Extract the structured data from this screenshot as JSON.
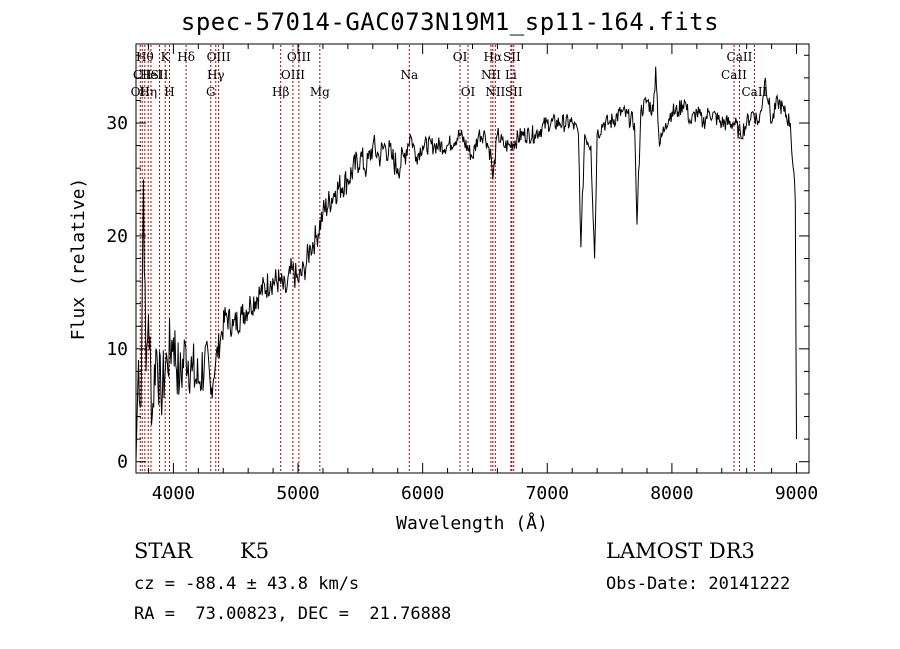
{
  "chart_data": {
    "type": "line",
    "title": "spec-57014-GAC073N19M1_sp11-164.fits",
    "xlabel": "Wavelength (Å)",
    "ylabel": "Flux (relative)",
    "xlim": [
      3700,
      9100
    ],
    "ylim": [
      -1,
      37
    ],
    "xticks": [
      4000,
      5000,
      6000,
      7000,
      8000,
      9000
    ],
    "yticks": [
      0,
      10,
      20,
      30
    ],
    "series": [
      {
        "name": "flux",
        "x": [
          3700,
          3720,
          3740,
          3760,
          3780,
          3800,
          3830,
          3860,
          3900,
          3950,
          4000,
          4050,
          4100,
          4150,
          4200,
          4250,
          4300,
          4340,
          4380,
          4420,
          4480,
          4550,
          4620,
          4700,
          4780,
          4850,
          4900,
          4950,
          5000,
          5050,
          5100,
          5150,
          5200,
          5300,
          5400,
          5500,
          5550,
          5600,
          5650,
          5700,
          5750,
          5800,
          5850,
          5900,
          5950,
          6000,
          6100,
          6200,
          6300,
          6400,
          6450,
          6500,
          6550,
          6564,
          6600,
          6650,
          6700,
          6800,
          6900,
          7000,
          7100,
          7200,
          7250,
          7270,
          7300,
          7350,
          7380,
          7400,
          7450,
          7500,
          7600,
          7700,
          7720,
          7750,
          7800,
          7850,
          7870,
          7900,
          7950,
          8000,
          8050,
          8100,
          8150,
          8200,
          8250,
          8300,
          8400,
          8500,
          8550,
          8600,
          8650,
          8700,
          8750,
          8800,
          8850,
          8900,
          8950,
          8990,
          9000
        ],
        "y": [
          0,
          9,
          5,
          25,
          8,
          13,
          4,
          10,
          6,
          9,
          11,
          7,
          10,
          8,
          7,
          9,
          6,
          9,
          11,
          13,
          12,
          13,
          14,
          15,
          16,
          16,
          15,
          17,
          16,
          17,
          19,
          20,
          22,
          24,
          25,
          27,
          26,
          28,
          27,
          28,
          27,
          26,
          27,
          29,
          27,
          28,
          28,
          28,
          29,
          27,
          29,
          29,
          27,
          25,
          29,
          28,
          28,
          29,
          29,
          30,
          30,
          30,
          29,
          19,
          29,
          28,
          18,
          29,
          30,
          30,
          31,
          30,
          21,
          31,
          32,
          31,
          35,
          28,
          30,
          31,
          31,
          32,
          30,
          31,
          30,
          31,
          30,
          30,
          29,
          30,
          31,
          30,
          34,
          30,
          32,
          31,
          30,
          23,
          2
        ]
      }
    ],
    "lines": [
      {
        "wave": 3734,
        "label": "OII",
        "row": 3
      },
      {
        "wave": 3750,
        "label": "CII",
        "row": 2
      },
      {
        "wave": 3771,
        "label": "Hθ",
        "row": 1
      },
      {
        "wave": 3798,
        "label": "Hη",
        "row": 3
      },
      {
        "wave": 3820,
        "label": "HeI",
        "row": 2
      },
      {
        "wave": 3889,
        "label": "SII",
        "row": 2
      },
      {
        "wave": 3934,
        "label": "K",
        "row": 1
      },
      {
        "wave": 3969,
        "label": "H",
        "row": 3
      },
      {
        "wave": 4102,
        "label": "Hδ",
        "row": 1
      },
      {
        "wave": 4300,
        "label": "G",
        "row": 3
      },
      {
        "wave": 4340,
        "label": "Hγ",
        "row": 2
      },
      {
        "wave": 4363,
        "label": "OIII",
        "row": 1
      },
      {
        "wave": 4861,
        "label": "Hβ",
        "row": 3
      },
      {
        "wave": 4959,
        "label": "OIII",
        "row": 2
      },
      {
        "wave": 5007,
        "label": "OIII",
        "row": 1
      },
      {
        "wave": 5175,
        "label": "Mg",
        "row": 3
      },
      {
        "wave": 5893,
        "label": "Na",
        "row": 2
      },
      {
        "wave": 6300,
        "label": "OI",
        "row": 1
      },
      {
        "wave": 6364,
        "label": "OI",
        "row": 3
      },
      {
        "wave": 6548,
        "label": "NII",
        "row": 2
      },
      {
        "wave": 6563,
        "label": "Hα",
        "row": 1
      },
      {
        "wave": 6583,
        "label": "NII",
        "row": 3
      },
      {
        "wave": 6708,
        "label": "Li",
        "row": 2
      },
      {
        "wave": 6716,
        "label": "SII",
        "row": 1
      },
      {
        "wave": 6731,
        "label": "SII",
        "row": 3
      },
      {
        "wave": 8498,
        "label": "CaII",
        "row": 2
      },
      {
        "wave": 8542,
        "label": "CaII",
        "row": 1
      },
      {
        "wave": 8662,
        "label": "CaII",
        "row": 3
      }
    ]
  },
  "info": {
    "object_class": "STAR",
    "subclass": "K5",
    "survey": "LAMOST DR3",
    "cz": "cz = -88.4 ± 43.8 km/s",
    "obs_date": "Obs-Date: 20141222",
    "coords": "RA =  73.00823, DEC =  21.76888"
  }
}
